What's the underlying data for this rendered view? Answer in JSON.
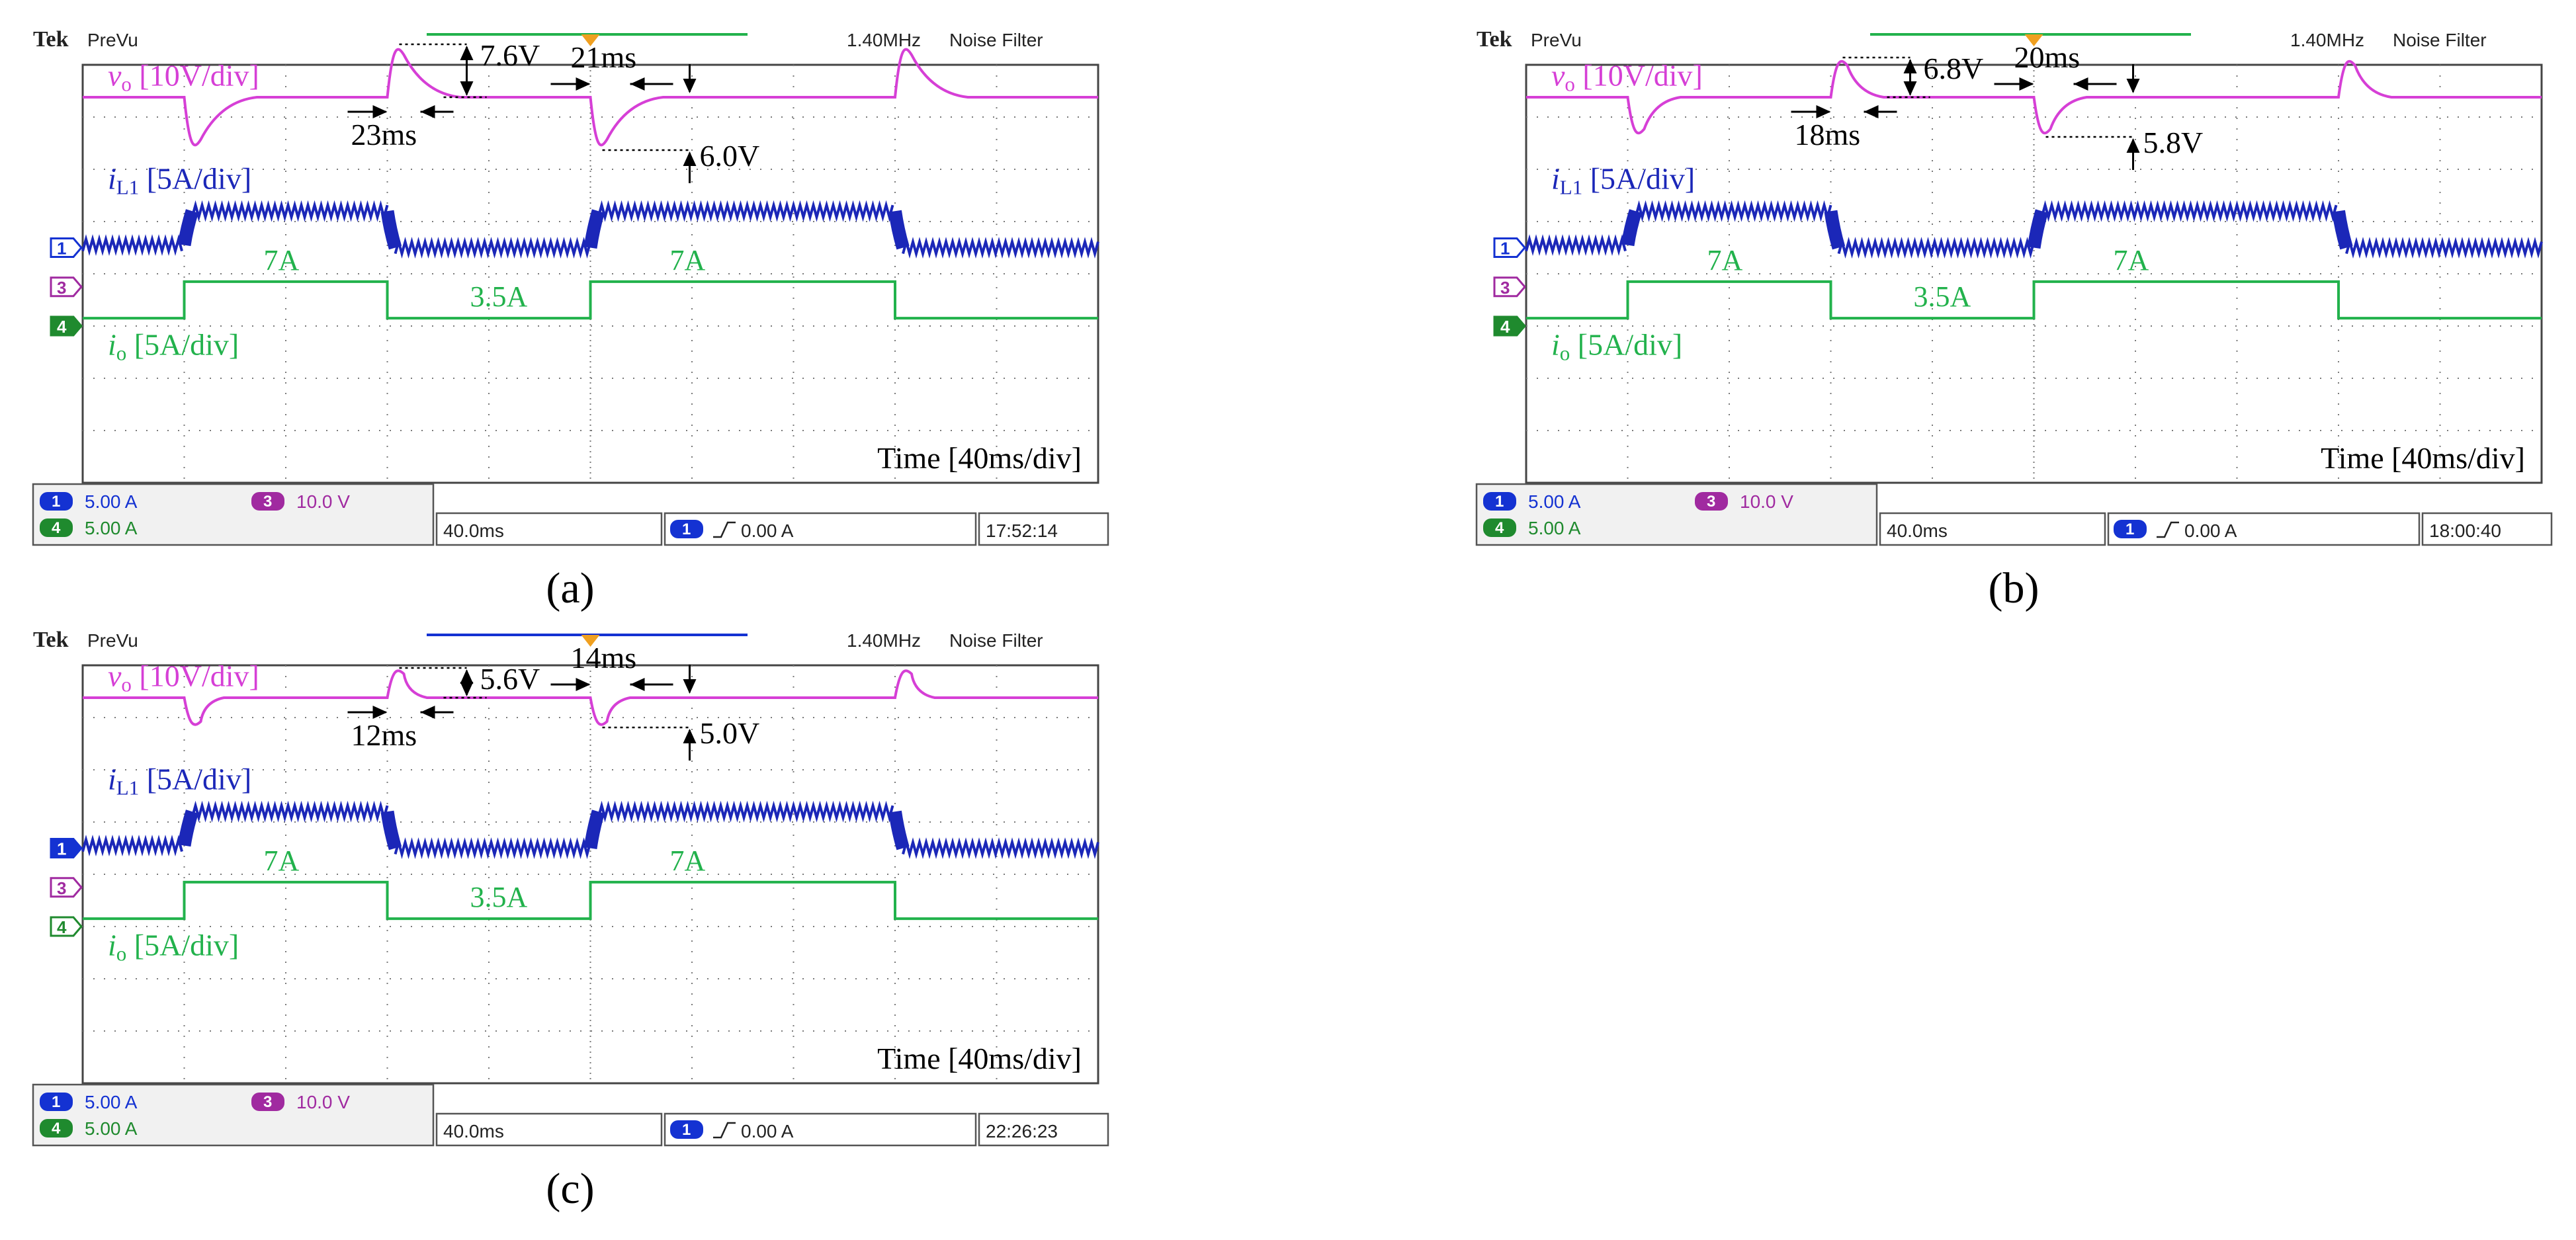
{
  "panels": [
    {
      "id": "a",
      "caption": "(a)",
      "brand": "Tek",
      "mode": "PreVu",
      "bandwidth": "1.40MHz",
      "filter": "Noise Filter",
      "timebase": "40.0ms",
      "trigger": "0.00 A",
      "clock": "17:52:14",
      "ch_readouts": [
        {
          "ch": "1",
          "value": "5.00 A"
        },
        {
          "ch": "3",
          "value": "10.0 V"
        },
        {
          "ch": "4",
          "value": "5.00 A"
        }
      ],
      "ch_markers": [
        "1",
        "3",
        "4"
      ],
      "labels": {
        "vo": "v",
        "vo_sub": "o",
        "vo_scale": " [10V/div]",
        "il": "i",
        "il_sub": "L1",
        "il_scale": " [5A/div]",
        "io": "i",
        "io_sub": "o",
        "io_scale": " [5A/div]",
        "time": "Time [40ms/div]",
        "io_high": "7A",
        "io_low": "3.5A"
      },
      "annotations": {
        "overshoot": "7.6V",
        "overshoot_time": "23ms",
        "undershoot": "6.0V",
        "undershoot_time": "21ms"
      }
    },
    {
      "id": "b",
      "caption": "(b)",
      "brand": "Tek",
      "mode": "PreVu",
      "bandwidth": "1.40MHz",
      "filter": "Noise Filter",
      "timebase": "40.0ms",
      "trigger": "0.00 A",
      "clock": "18:00:40",
      "ch_readouts": [
        {
          "ch": "1",
          "value": "5.00 A"
        },
        {
          "ch": "3",
          "value": "10.0 V"
        },
        {
          "ch": "4",
          "value": "5.00 A"
        }
      ],
      "ch_markers": [
        "1",
        "3",
        "4"
      ],
      "labels": {
        "vo": "v",
        "vo_sub": "o",
        "vo_scale": " [10V/div]",
        "il": "i",
        "il_sub": "L1",
        "il_scale": " [5A/div]",
        "io": "i",
        "io_sub": "o",
        "io_scale": " [5A/div]",
        "time": "Time [40ms/div]",
        "io_high": "7A",
        "io_low": "3.5A"
      },
      "annotations": {
        "overshoot": "6.8V",
        "overshoot_time": "18ms",
        "undershoot": "5.8V",
        "undershoot_time": "20ms"
      }
    },
    {
      "id": "c",
      "caption": "(c)",
      "brand": "Tek",
      "mode": "PreVu",
      "bandwidth": "1.40MHz",
      "filter": "Noise Filter",
      "timebase": "40.0ms",
      "trigger": "0.00 A",
      "clock": "22:26:23",
      "ch_readouts": [
        {
          "ch": "1",
          "value": "5.00 A"
        },
        {
          "ch": "3",
          "value": "10.0 V"
        },
        {
          "ch": "4",
          "value": "5.00 A"
        }
      ],
      "ch_markers": [
        "1",
        "3",
        "4"
      ],
      "labels": {
        "vo": "v",
        "vo_sub": "o",
        "vo_scale": " [10V/div]",
        "il": "i",
        "il_sub": "L1",
        "il_scale": " [5A/div]",
        "io": "i",
        "io_sub": "o",
        "io_scale": " [5A/div]",
        "time": "Time [40ms/div]",
        "io_high": "7A",
        "io_low": "3.5A"
      },
      "annotations": {
        "overshoot": "5.6V",
        "overshoot_time": "12ms",
        "undershoot": "5.0V",
        "undershoot_time": "14ms"
      }
    }
  ],
  "colors": {
    "vo": "#d63fd6",
    "il": "#1b27b8",
    "io": "#22b24c",
    "grid": "#7a7a7a",
    "ch1": "#1432d2",
    "ch3": "#a02aa0",
    "ch4": "#1f8a2e",
    "trigger_marker": "#f0a020"
  },
  "chart_data": [
    {
      "type": "line",
      "panel": "a",
      "x_unit": "ms",
      "time_per_div": 40,
      "xlim": [
        0,
        400
      ],
      "grid": true,
      "load_step_times_ms": [
        0,
        80,
        160,
        280
      ],
      "series": [
        {
          "name": "v_o",
          "scale": "10V/div",
          "overshoot_V": 7.6,
          "overshoot_settle_ms": 23,
          "undershoot_V": 6.0,
          "undershoot_settle_ms": 21
        },
        {
          "name": "i_L1",
          "scale": "5A/div",
          "low_A": 3.5,
          "high_A": 7
        },
        {
          "name": "i_o",
          "scale": "5A/div",
          "values_A": [
            3.5,
            7,
            3.5,
            7,
            3.5
          ],
          "step_times_ms": [
            0,
            80,
            160,
            280
          ],
          "low_A": 3.5,
          "high_A": 7
        }
      ]
    },
    {
      "type": "line",
      "panel": "b",
      "x_unit": "ms",
      "time_per_div": 40,
      "xlim": [
        0,
        400
      ],
      "grid": true,
      "load_step_times_ms": [
        0,
        80,
        160,
        280
      ],
      "series": [
        {
          "name": "v_o",
          "scale": "10V/div",
          "overshoot_V": 6.8,
          "overshoot_settle_ms": 18,
          "undershoot_V": 5.8,
          "undershoot_settle_ms": 20
        },
        {
          "name": "i_L1",
          "scale": "5A/div",
          "low_A": 3.5,
          "high_A": 7
        },
        {
          "name": "i_o",
          "scale": "5A/div",
          "values_A": [
            3.5,
            7,
            3.5,
            7,
            3.5
          ],
          "step_times_ms": [
            0,
            80,
            160,
            280
          ],
          "low_A": 3.5,
          "high_A": 7
        }
      ]
    },
    {
      "type": "line",
      "panel": "c",
      "x_unit": "ms",
      "time_per_div": 40,
      "xlim": [
        0,
        400
      ],
      "grid": true,
      "load_step_times_ms": [
        0,
        80,
        160,
        280
      ],
      "series": [
        {
          "name": "v_o",
          "scale": "10V/div",
          "overshoot_V": 5.6,
          "overshoot_settle_ms": 12,
          "undershoot_V": 5.0,
          "undershoot_settle_ms": 14
        },
        {
          "name": "i_L1",
          "scale": "5A/div",
          "low_A": 3.5,
          "high_A": 7
        },
        {
          "name": "i_o",
          "scale": "5A/div",
          "values_A": [
            3.5,
            7,
            3.5,
            7,
            3.5
          ],
          "step_times_ms": [
            0,
            80,
            160,
            280
          ],
          "low_A": 3.5,
          "high_A": 7
        }
      ]
    }
  ]
}
